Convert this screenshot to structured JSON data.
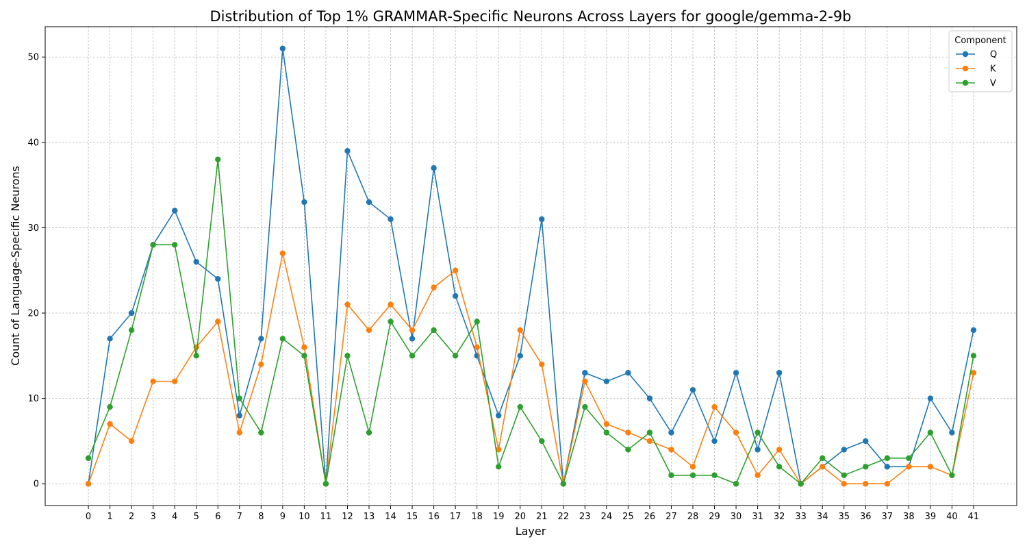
{
  "chart_data": {
    "type": "line",
    "title": "Distribution of Top 1% GRAMMAR-Specific Neurons Across Layers for google/gemma-2-9b",
    "xlabel": "Layer",
    "ylabel": "Count of Language-Specific Neurons",
    "x": [
      0,
      1,
      2,
      3,
      4,
      5,
      6,
      7,
      8,
      9,
      10,
      11,
      12,
      13,
      14,
      15,
      16,
      17,
      18,
      19,
      20,
      21,
      22,
      23,
      24,
      25,
      26,
      27,
      28,
      29,
      30,
      31,
      32,
      33,
      34,
      35,
      36,
      37,
      38,
      39,
      40,
      41
    ],
    "xlim": [
      -2,
      43
    ],
    "ylim": [
      -2.55,
      53.55
    ],
    "yticks": [
      0,
      10,
      20,
      30,
      40,
      50
    ],
    "grid": true,
    "legend": {
      "title": "Component",
      "placement": "top-right"
    },
    "series": [
      {
        "name": "Q",
        "color": "#1f77b4",
        "values": [
          0,
          17,
          20,
          28,
          32,
          26,
          24,
          8,
          17,
          51,
          33,
          0,
          39,
          33,
          31,
          17,
          37,
          22,
          15,
          8,
          15,
          31,
          0,
          13,
          12,
          13,
          10,
          6,
          11,
          5,
          13,
          4,
          13,
          0,
          2,
          4,
          5,
          2,
          2,
          10,
          6,
          18
        ]
      },
      {
        "name": "K",
        "color": "#ff7f0e",
        "values": [
          0,
          7,
          5,
          12,
          12,
          16,
          19,
          6,
          14,
          27,
          16,
          0,
          21,
          18,
          21,
          18,
          23,
          25,
          16,
          4,
          18,
          14,
          0,
          12,
          7,
          6,
          5,
          4,
          2,
          9,
          6,
          1,
          4,
          0,
          2,
          0,
          0,
          0,
          2,
          2,
          1,
          13
        ]
      },
      {
        "name": "V",
        "color": "#2ca02c",
        "values": [
          3,
          9,
          18,
          28,
          28,
          15,
          38,
          10,
          6,
          17,
          15,
          0,
          15,
          6,
          19,
          15,
          18,
          15,
          19,
          2,
          9,
          5,
          0,
          9,
          6,
          4,
          6,
          1,
          1,
          1,
          0,
          6,
          2,
          0,
          3,
          1,
          2,
          3,
          3,
          6,
          1,
          15
        ]
      }
    ]
  }
}
